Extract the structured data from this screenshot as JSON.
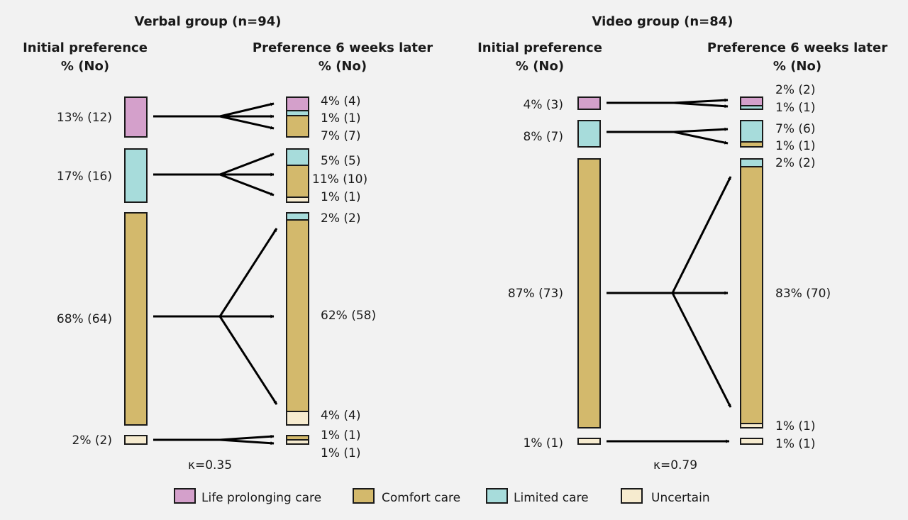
{
  "colors": {
    "life_prolonging": "#d4a0cb",
    "comfort": "#d3b96c",
    "limited": "#a7dcdb",
    "uncertain": "#f6ebcf"
  },
  "legend": [
    {
      "key": "life_prolonging",
      "label": "Life prolonging care"
    },
    {
      "key": "comfort",
      "label": "Comfort care"
    },
    {
      "key": "limited",
      "label": "Limited care"
    },
    {
      "key": "uncertain",
      "label": "Uncertain"
    }
  ],
  "verbal": {
    "title": "Verbal group (n=94)",
    "initial_header": [
      "Initial preference",
      "% (No)"
    ],
    "later_header": [
      "Preference 6 weeks later",
      "% (No)"
    ],
    "kappa": "κ=0.35",
    "initial": [
      {
        "key": "life_prolonging",
        "count": 12,
        "label": "13% (12)"
      },
      {
        "key": "limited",
        "count": 16,
        "label": "17% (16)"
      },
      {
        "key": "comfort",
        "count": 64,
        "label": "68% (64)"
      },
      {
        "key": "uncertain",
        "count": 2,
        "label": "2% (2)"
      }
    ],
    "later": [
      [
        {
          "key": "life_prolonging",
          "count": 4,
          "label": "4% (4)"
        },
        {
          "key": "limited",
          "count": 1,
          "label": "1% (1)"
        },
        {
          "key": "comfort",
          "count": 7,
          "label": "7% (7)"
        }
      ],
      [
        {
          "key": "limited",
          "count": 5,
          "label": "5% (5)"
        },
        {
          "key": "comfort",
          "count": 10,
          "label": "11% (10)"
        },
        {
          "key": "uncertain",
          "count": 1,
          "label": "1% (1)"
        }
      ],
      [
        {
          "key": "limited",
          "count": 2,
          "label": "2% (2)"
        },
        {
          "key": "comfort",
          "count": 58,
          "label": "62% (58)"
        },
        {
          "key": "uncertain",
          "count": 4,
          "label": "4% (4)"
        }
      ],
      [
        {
          "key": "comfort",
          "count": 1,
          "label": "1% (1)"
        },
        {
          "key": "uncertain",
          "count": 1,
          "label": "1% (1)"
        }
      ]
    ]
  },
  "video": {
    "title": "Video group (n=84)",
    "initial_header": [
      "Initial preference",
      "% (No)"
    ],
    "later_header": [
      "Preference 6 weeks later",
      "% (No)"
    ],
    "kappa": "κ=0.79",
    "initial": [
      {
        "key": "life_prolonging",
        "count": 3,
        "label": "4% (3)"
      },
      {
        "key": "limited",
        "count": 7,
        "label": "8% (7)"
      },
      {
        "key": "comfort",
        "count": 73,
        "label": "87% (73)"
      },
      {
        "key": "uncertain",
        "count": 1,
        "label": "1% (1)"
      }
    ],
    "later": [
      [
        {
          "key": "life_prolonging",
          "count": 2,
          "label": "2% (2)"
        },
        {
          "key": "limited",
          "count": 1,
          "label": "1% (1)"
        }
      ],
      [
        {
          "key": "limited",
          "count": 6,
          "label": "7% (6)"
        },
        {
          "key": "comfort",
          "count": 1,
          "label": "1% (1)"
        }
      ],
      [
        {
          "key": "limited",
          "count": 2,
          "label": "2% (2)"
        },
        {
          "key": "comfort",
          "count": 70,
          "label": "83% (70)"
        },
        {
          "key": "uncertain",
          "count": 1,
          "label": "1% (1)"
        }
      ],
      [
        {
          "key": "uncertain",
          "count": 1,
          "label": "1% (1)"
        }
      ]
    ]
  }
}
